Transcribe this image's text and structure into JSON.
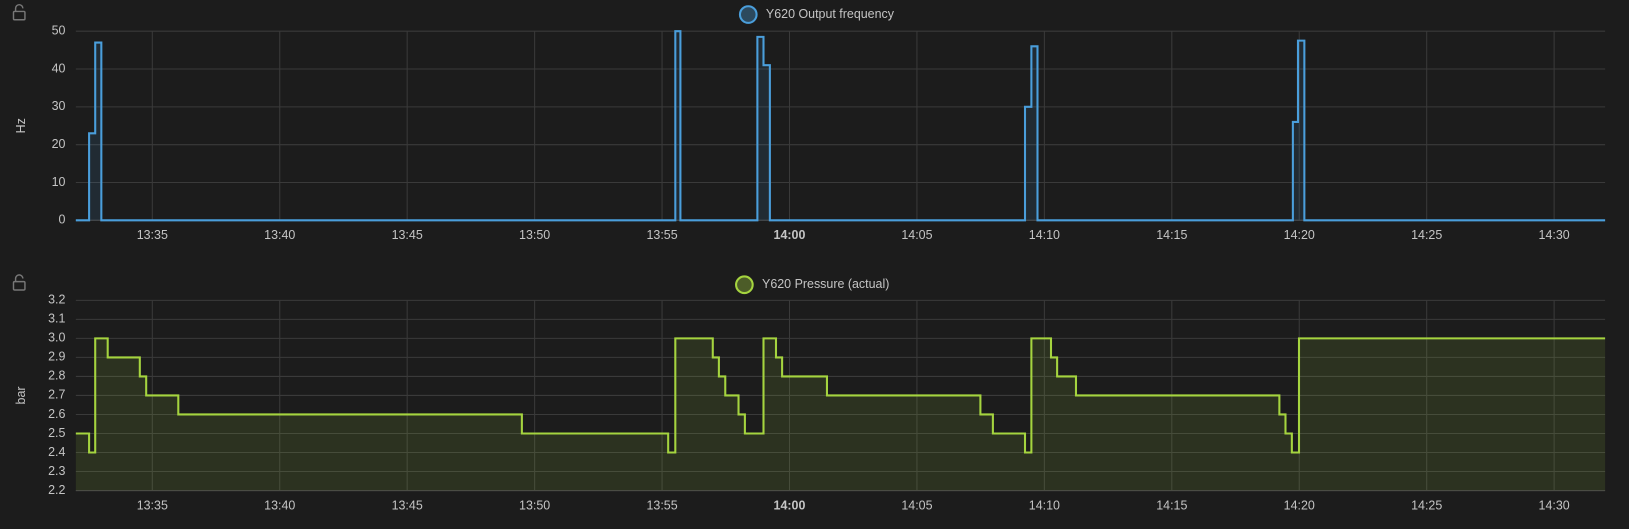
{
  "chart_data": [
    {
      "type": "line",
      "step": "after",
      "area": true,
      "grid": true,
      "y_label": "Hz",
      "x": [
        812,
        812.52,
        812.76,
        813.0,
        835.52,
        835.72,
        838.74,
        838.98,
        839.23,
        849.24,
        849.49,
        849.73,
        859.75,
        859.95,
        860.2,
        872
      ],
      "series": [
        {
          "name": "Y620 Output frequency",
          "color": "#4a9edb",
          "values": [
            0,
            23,
            47,
            0,
            50,
            0,
            48.5,
            41,
            0,
            30,
            46,
            0,
            26,
            47.5,
            0,
            0
          ]
        }
      ],
      "xlim": [
        812,
        872
      ],
      "xticks": [
        {
          "value": 815,
          "label": "13:35"
        },
        {
          "value": 820,
          "label": "13:40"
        },
        {
          "value": 825,
          "label": "13:45"
        },
        {
          "value": 830,
          "label": "13:50"
        },
        {
          "value": 835,
          "label": "13:55"
        },
        {
          "value": 840,
          "label": "14:00"
        },
        {
          "value": 845,
          "label": "14:05"
        },
        {
          "value": 850,
          "label": "14:10"
        },
        {
          "value": 855,
          "label": "14:15"
        },
        {
          "value": 860,
          "label": "14:20"
        },
        {
          "value": 865,
          "label": "14:25"
        },
        {
          "value": 870,
          "label": "14:30"
        }
      ],
      "ylim": [
        0,
        50
      ],
      "yticks": [
        0,
        10,
        20,
        30,
        40,
        50
      ]
    },
    {
      "type": "line",
      "step": "after",
      "area": true,
      "grid": true,
      "y_label": "bar",
      "x": [
        812,
        812.52,
        812.76,
        813.25,
        814.51,
        814.76,
        816.02,
        829.5,
        835.24,
        835.52,
        836.99,
        837.23,
        837.48,
        838.0,
        838.25,
        838.98,
        839.47,
        839.71,
        841.47,
        847.49,
        847.98,
        849.24,
        849.49,
        850.26,
        850.5,
        851.24,
        859.22,
        859.46,
        859.71,
        859.99,
        872
      ],
      "series": [
        {
          "name": "Y620 Pressure (actual)",
          "color": "#a5d43f",
          "values": [
            2.5,
            2.4,
            3.0,
            2.9,
            2.8,
            2.7,
            2.6,
            2.5,
            2.4,
            3.0,
            2.9,
            2.8,
            2.7,
            2.6,
            2.5,
            3.0,
            2.9,
            2.8,
            2.7,
            2.6,
            2.5,
            2.4,
            3.0,
            2.9,
            2.8,
            2.7,
            2.6,
            2.5,
            2.4,
            3.0,
            3.0
          ]
        }
      ],
      "xlim": [
        812,
        872
      ],
      "xticks": [
        {
          "value": 815,
          "label": "13:35"
        },
        {
          "value": 820,
          "label": "13:40"
        },
        {
          "value": 825,
          "label": "13:45"
        },
        {
          "value": 830,
          "label": "13:50"
        },
        {
          "value": 835,
          "label": "13:55"
        },
        {
          "value": 840,
          "label": "14:00"
        },
        {
          "value": 845,
          "label": "14:05"
        },
        {
          "value": 850,
          "label": "14:10"
        },
        {
          "value": 855,
          "label": "14:15"
        },
        {
          "value": 860,
          "label": "14:20"
        },
        {
          "value": 865,
          "label": "14:25"
        },
        {
          "value": 870,
          "label": "14:30"
        }
      ],
      "ylim": [
        2.2,
        3.2
      ],
      "yticks": [
        2.2,
        2.3,
        2.4,
        2.5,
        2.6,
        2.7,
        2.8,
        2.9,
        {
          "value": 3,
          "label": "3.0"
        },
        3.1,
        3.2
      ]
    }
  ]
}
